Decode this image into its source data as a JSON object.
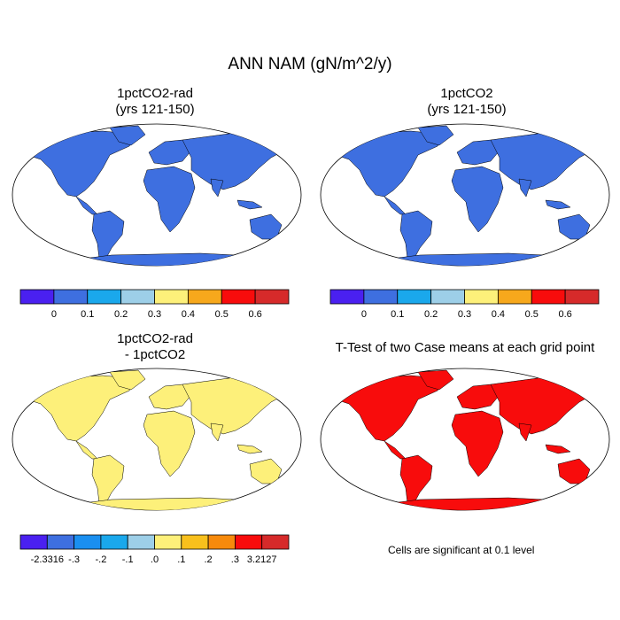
{
  "figure": {
    "title": "ANN NAM (gN/m^2/y)"
  },
  "panels": {
    "p1": {
      "title": "1pctCO2-rad",
      "subtitle": "(yrs 121-150)"
    },
    "p2": {
      "title": "1pctCO2",
      "subtitle": "(yrs 121-150)"
    },
    "p3": {
      "title": "1pctCO2-rad",
      "subtitle": "- 1pctCO2"
    },
    "p4": {
      "title": "T-Test of two Case means at each grid point",
      "note": "Cells are significant at 0.1 level"
    }
  },
  "colorbars": {
    "top": {
      "colors": [
        "#4a20f0",
        "#3e6fe0",
        "#1aa8ec",
        "#9dcfe8",
        "#fdf07a",
        "#f7a81c",
        "#f80c0c",
        "#d62a2a"
      ],
      "labels": [
        "0",
        "0.1",
        "0.2",
        "0.3",
        "0.4",
        "0.5",
        "0.6"
      ]
    },
    "diff": {
      "colors": [
        "#4a20f0",
        "#3e6fe0",
        "#1a8ff0",
        "#1aa8ec",
        "#9dcfe8",
        "#fdf07a",
        "#f8c01c",
        "#f78a0c",
        "#f80c0c",
        "#d62a2a"
      ],
      "labels": [
        "-2.3316",
        "-.3",
        "-.2",
        "-.1",
        ".0",
        ".1",
        ".2",
        ".3",
        "3.2127"
      ]
    }
  },
  "map_fills": {
    "p1_base": "#3e6fe0",
    "p2_base": "#3e6fe0",
    "p3_base": "#fdf07a",
    "p4_signif": "#f80c0c"
  }
}
